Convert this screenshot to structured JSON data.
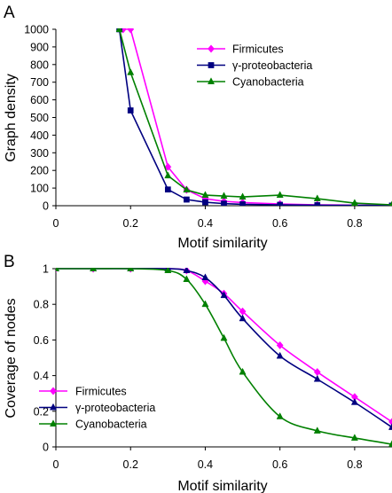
{
  "chart_data": [
    {
      "panel_label": "A",
      "type": "line",
      "xlabel": "Motif similarity",
      "ylabel": "Graph density",
      "xlim": [
        0,
        0.9
      ],
      "ylim": [
        0,
        1000
      ],
      "x_ticks": [
        "0",
        "0.2",
        "0.4",
        "0.6",
        "0.8"
      ],
      "y_ticks": [
        "0",
        "100",
        "200",
        "300",
        "400",
        "500",
        "600",
        "700",
        "800",
        "900",
        "1000"
      ],
      "grid": false,
      "legend_position": "top-right",
      "series": [
        {
          "name": "Firmicutes",
          "color": "#ff00ff",
          "marker": "diamond",
          "x": [
            0.18,
            0.2,
            0.3,
            0.35,
            0.4,
            0.45,
            0.5,
            0.6,
            0.7,
            0.8,
            0.9
          ],
          "y": [
            1000,
            1000,
            220,
            90,
            40,
            25,
            18,
            10,
            5,
            3,
            2
          ]
        },
        {
          "name": "γ-proteobacteria",
          "color": "#000080",
          "marker": "square",
          "x": [
            0.17,
            0.2,
            0.3,
            0.35,
            0.4,
            0.45,
            0.5,
            0.6,
            0.7,
            0.8,
            0.9
          ],
          "y": [
            1000,
            540,
            92,
            35,
            20,
            12,
            8,
            5,
            3,
            2,
            1
          ]
        },
        {
          "name": "Cyanobacteria",
          "color": "#008000",
          "marker": "triangle",
          "x": [
            0.17,
            0.2,
            0.3,
            0.35,
            0.4,
            0.45,
            0.5,
            0.6,
            0.7,
            0.8,
            0.9
          ],
          "y": [
            1000,
            755,
            170,
            90,
            60,
            55,
            50,
            60,
            40,
            15,
            5
          ]
        }
      ]
    },
    {
      "panel_label": "B",
      "type": "line",
      "xlabel": "Motif similarity",
      "ylabel": "Coverage of nodes",
      "xlim": [
        0,
        0.9
      ],
      "ylim": [
        0,
        1
      ],
      "x_ticks": [
        "0",
        "0.2",
        "0.4",
        "0.6",
        "0.8"
      ],
      "y_ticks": [
        "0",
        "0.2",
        "0.4",
        "0.6",
        "0.8",
        "1"
      ],
      "grid": false,
      "legend_position": "bottom-left",
      "series": [
        {
          "name": "Firmicutes",
          "color": "#ff00ff",
          "marker": "diamond",
          "x": [
            0,
            0.1,
            0.2,
            0.3,
            0.35,
            0.4,
            0.45,
            0.5,
            0.6,
            0.7,
            0.8,
            0.9
          ],
          "y": [
            1,
            1,
            1,
            1,
            0.99,
            0.93,
            0.86,
            0.76,
            0.57,
            0.42,
            0.28,
            0.14
          ]
        },
        {
          "name": "γ-proteobacteria",
          "color": "#000080",
          "marker": "triangle",
          "x": [
            0,
            0.1,
            0.2,
            0.3,
            0.35,
            0.4,
            0.45,
            0.5,
            0.6,
            0.7,
            0.8,
            0.9
          ],
          "y": [
            1,
            1,
            1,
            1,
            0.99,
            0.95,
            0.85,
            0.72,
            0.51,
            0.38,
            0.25,
            0.11
          ]
        },
        {
          "name": "Cyanobacteria",
          "color": "#008000",
          "marker": "triangle",
          "x": [
            0,
            0.1,
            0.2,
            0.3,
            0.35,
            0.4,
            0.45,
            0.5,
            0.6,
            0.7,
            0.8,
            0.9
          ],
          "y": [
            1,
            1,
            1,
            0.99,
            0.94,
            0.8,
            0.61,
            0.42,
            0.17,
            0.09,
            0.05,
            0.015
          ]
        }
      ]
    }
  ]
}
